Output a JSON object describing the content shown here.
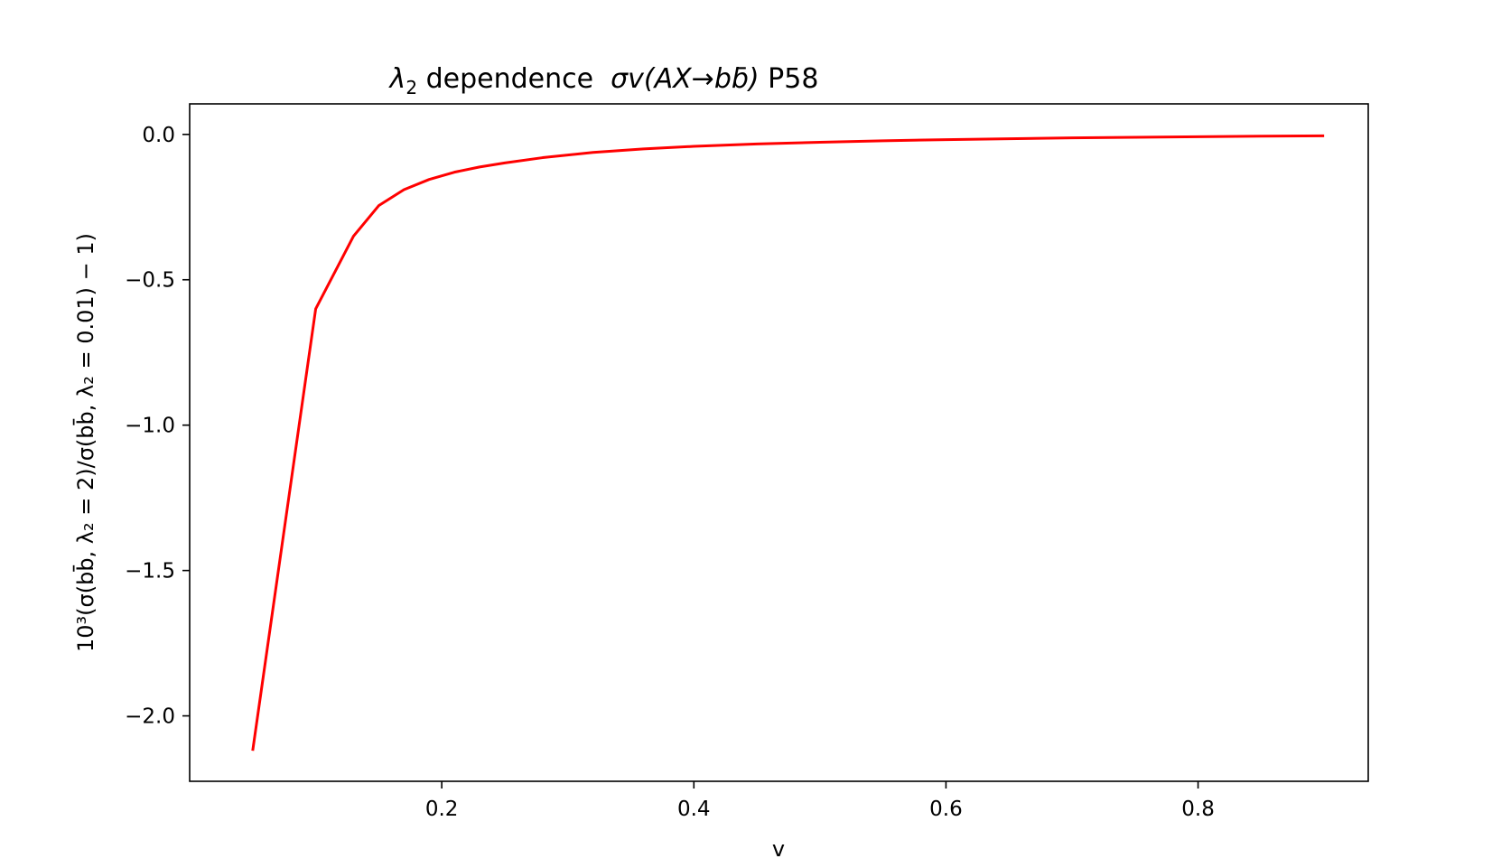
{
  "chart_data": {
    "type": "line",
    "title": "λ₂ dependence  σv(AX→bb̄) P58",
    "title_parts": {
      "lambda": "λ",
      "lambda_sub": "2",
      "text": " dependence  ",
      "formula_pre": "σv(AX→b",
      "formula_bbar": "b",
      "formula_bar": "̄",
      "formula_post": ")",
      "suffix": " P58"
    },
    "xlabel": "v",
    "ylabel": "10³(σ(bb̄, λ₂ = 2)/σ(bb̄, λ₂ = 0.01) − 1)",
    "xlim": [
      0.0,
      0.935
    ],
    "ylim": [
      -2.225,
      0.105
    ],
    "x_ticks": [
      {
        "value": 0.2,
        "label": "0.2"
      },
      {
        "value": 0.4,
        "label": "0.4"
      },
      {
        "value": 0.6,
        "label": "0.6"
      },
      {
        "value": 0.8,
        "label": "0.8"
      }
    ],
    "y_ticks": [
      {
        "value": 0.0,
        "label": "0.0"
      },
      {
        "value": -0.5,
        "label": "−0.5"
      },
      {
        "value": -1.0,
        "label": "−1.0"
      },
      {
        "value": -1.5,
        "label": "−1.5"
      },
      {
        "value": -2.0,
        "label": "−2.0"
      }
    ],
    "grid": false,
    "series": [
      {
        "color": "#ff0000",
        "x": [
          0.05,
          0.1,
          0.13,
          0.15,
          0.17,
          0.19,
          0.21,
          0.23,
          0.25,
          0.28,
          0.32,
          0.36,
          0.4,
          0.45,
          0.5,
          0.55,
          0.6,
          0.65,
          0.7,
          0.75,
          0.8,
          0.85,
          0.9
        ],
        "y": [
          -2.12,
          -0.6,
          -0.35,
          -0.245,
          -0.19,
          -0.155,
          -0.13,
          -0.112,
          -0.098,
          -0.08,
          -0.062,
          -0.05,
          -0.041,
          -0.033,
          -0.027,
          -0.022,
          -0.018,
          -0.015,
          -0.012,
          -0.01,
          -0.008,
          -0.006,
          -0.005
        ]
      }
    ]
  }
}
